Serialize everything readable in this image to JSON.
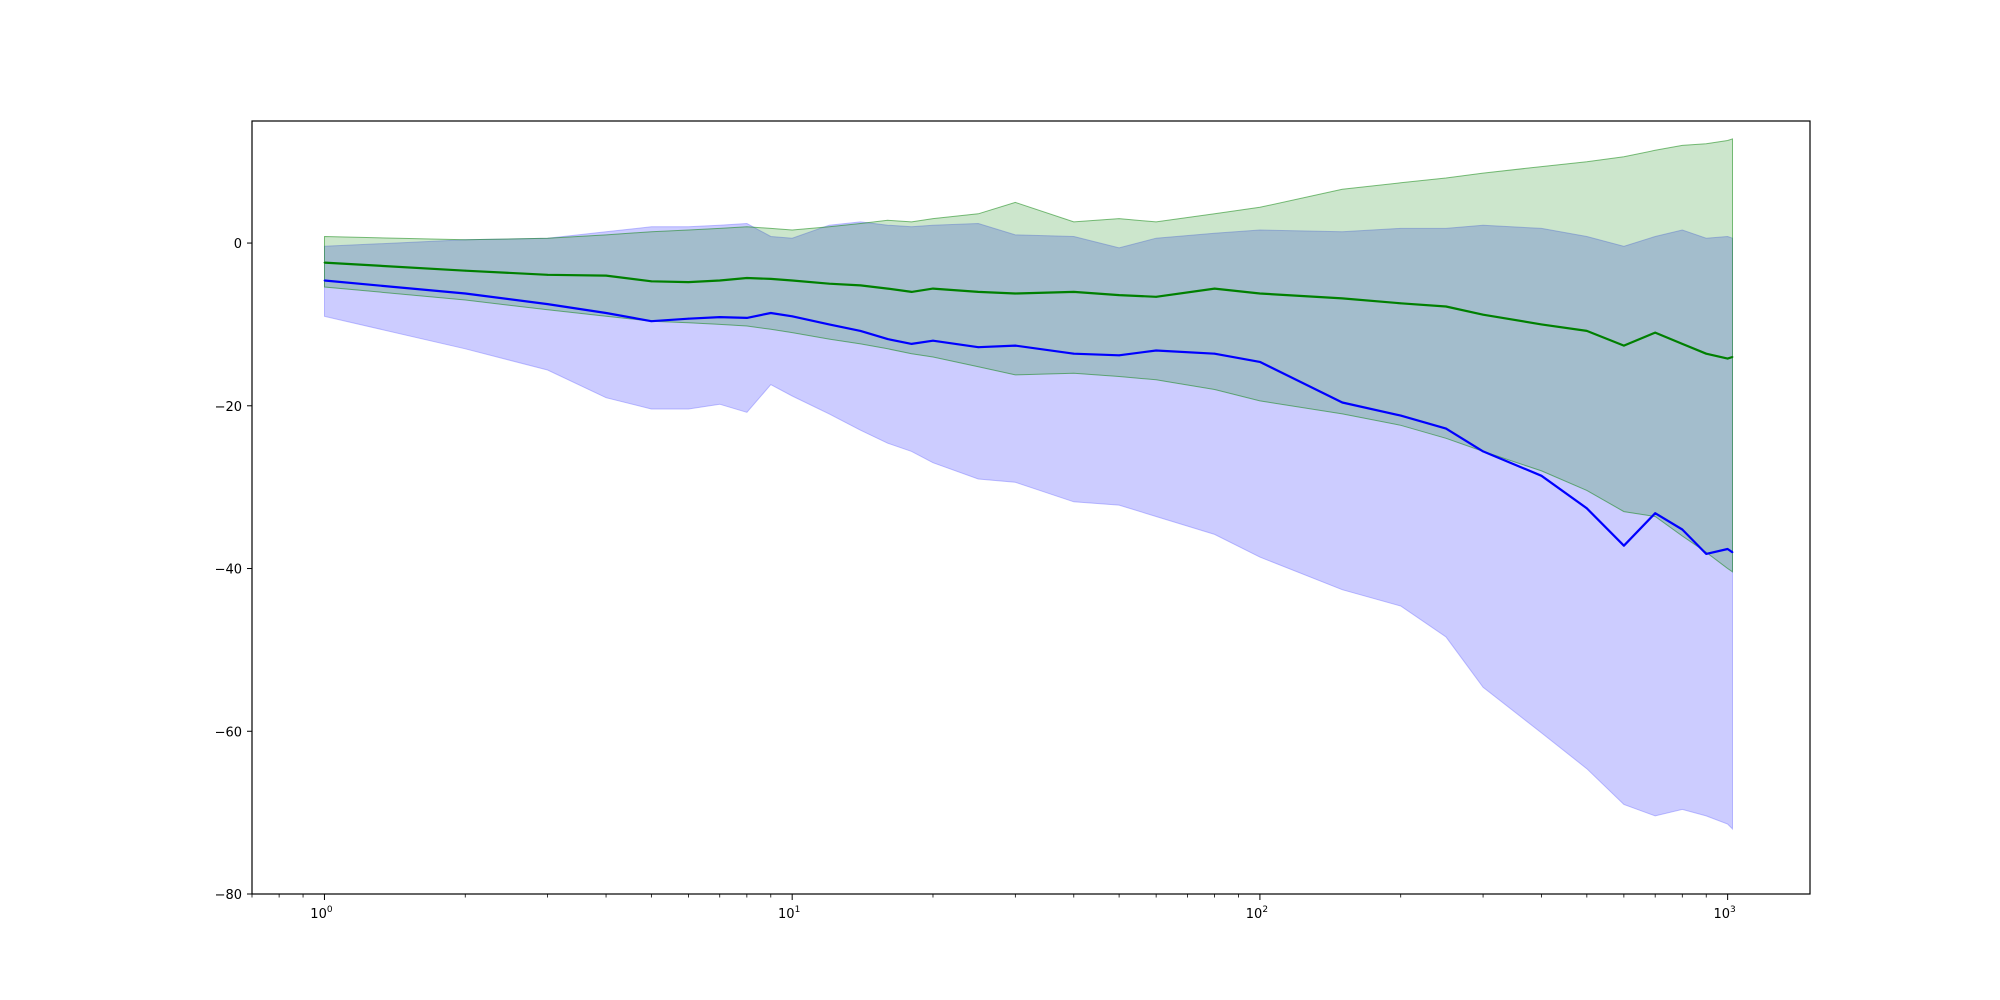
{
  "chart_data": {
    "type": "line",
    "title": "",
    "xlabel": "",
    "ylabel": "",
    "xscale": "log",
    "xlim": [
      0.7,
      1500
    ],
    "ylim": [
      -80,
      15
    ],
    "grid": false,
    "legend": "none",
    "x_ticks": [
      {
        "base": "10",
        "exp": "0",
        "value": 1
      },
      {
        "base": "10",
        "exp": "1",
        "value": 10
      },
      {
        "base": "10",
        "exp": "2",
        "value": 100
      },
      {
        "base": "10",
        "exp": "3",
        "value": 1000
      }
    ],
    "y_ticks": [
      {
        "label": "0",
        "value": 0
      },
      {
        "label": "−20",
        "value": -20
      },
      {
        "label": "−40",
        "value": -40
      },
      {
        "label": "−60",
        "value": -60
      },
      {
        "label": "−80",
        "value": -80
      }
    ],
    "series": [
      {
        "color": "#0000ff",
        "band_color": "#8080ff",
        "band_opacity": 0.4,
        "x": [
          1,
          2,
          3,
          4,
          5,
          6,
          7,
          8,
          9,
          10,
          12,
          14,
          16,
          18,
          20,
          25,
          30,
          40,
          50,
          60,
          80,
          100,
          150,
          200,
          250,
          300,
          400,
          500,
          600,
          700,
          800,
          900,
          1000,
          1024
        ],
        "mean": [
          -4.6,
          -6.2,
          -7.5,
          -8.6,
          -9.6,
          -9.3,
          -9.1,
          -9.2,
          -8.6,
          -9.0,
          -10.0,
          -10.8,
          -11.8,
          -12.4,
          -12.0,
          -12.8,
          -12.6,
          -13.6,
          -13.8,
          -13.2,
          -13.6,
          -14.6,
          -19.6,
          -21.2,
          -22.8,
          -25.6,
          -28.6,
          -32.6,
          -37.2,
          -33.2,
          -35.2,
          -38.2,
          -37.6,
          -38.0
        ],
        "upper": [
          -0.4,
          0.4,
          0.6,
          1.4,
          2.0,
          2.0,
          2.2,
          2.4,
          0.8,
          0.6,
          2.2,
          2.6,
          2.2,
          2.0,
          2.2,
          2.4,
          1.0,
          0.8,
          -0.6,
          0.6,
          1.2,
          1.6,
          1.4,
          1.8,
          1.8,
          2.2,
          1.8,
          0.8,
          -0.4,
          0.8,
          1.6,
          0.6,
          0.8,
          0.6
        ],
        "lower": [
          -9.0,
          -13.0,
          -15.6,
          -19.0,
          -20.4,
          -20.4,
          -19.8,
          -20.8,
          -17.4,
          -18.8,
          -21.0,
          -23.0,
          -24.6,
          -25.6,
          -27.0,
          -29.0,
          -29.4,
          -31.8,
          -32.2,
          -33.6,
          -35.8,
          -38.6,
          -42.6,
          -44.6,
          -48.4,
          -54.6,
          -60.2,
          -64.6,
          -69.0,
          -70.4,
          -69.6,
          -70.4,
          -71.4,
          -72.0
        ]
      },
      {
        "color": "#008000",
        "band_color": "#008000",
        "band_opacity": 0.2,
        "x": [
          1,
          2,
          3,
          4,
          5,
          6,
          7,
          8,
          9,
          10,
          12,
          14,
          16,
          18,
          20,
          25,
          30,
          40,
          50,
          60,
          80,
          100,
          150,
          200,
          250,
          300,
          400,
          500,
          600,
          700,
          800,
          900,
          1000,
          1024
        ],
        "mean": [
          -2.4,
          -3.4,
          -3.9,
          -4.0,
          -4.7,
          -4.8,
          -4.6,
          -4.3,
          -4.4,
          -4.6,
          -5.0,
          -5.2,
          -5.6,
          -6.0,
          -5.6,
          -6.0,
          -6.2,
          -6.0,
          -6.4,
          -6.6,
          -5.6,
          -6.2,
          -6.8,
          -7.4,
          -7.8,
          -8.8,
          -10.0,
          -10.8,
          -12.6,
          -11.0,
          -12.4,
          -13.6,
          -14.2,
          -14.0
        ],
        "upper": [
          0.8,
          0.4,
          0.6,
          1.0,
          1.4,
          1.6,
          1.8,
          2.0,
          1.8,
          1.6,
          2.0,
          2.4,
          2.8,
          2.6,
          3.0,
          3.6,
          5.0,
          2.6,
          3.0,
          2.6,
          3.6,
          4.4,
          6.6,
          7.4,
          8.0,
          8.6,
          9.4,
          10.0,
          10.6,
          11.4,
          12.0,
          12.2,
          12.6,
          12.8
        ],
        "lower": [
          -5.4,
          -7.0,
          -8.2,
          -9.0,
          -9.6,
          -9.8,
          -10.0,
          -10.2,
          -10.6,
          -11.0,
          -11.8,
          -12.4,
          -13.0,
          -13.6,
          -14.0,
          -15.2,
          -16.2,
          -16.0,
          -16.4,
          -16.8,
          -18.0,
          -19.4,
          -21.0,
          -22.4,
          -24.0,
          -25.6,
          -28.0,
          -30.4,
          -33.0,
          -33.6,
          -36.0,
          -38.0,
          -40.0,
          -40.4
        ]
      }
    ]
  }
}
